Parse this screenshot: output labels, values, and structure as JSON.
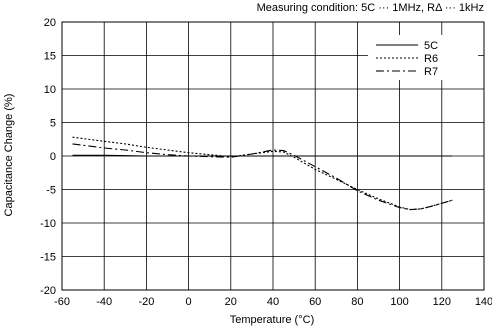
{
  "chart_data": {
    "type": "line",
    "condition_note": "Measuring condition: 5C ··· 1MHz, RΔ ··· 1kHz",
    "xlabel": "Temperature (°C)",
    "ylabel": "Capacitance Change (%)",
    "xlim": [
      -60,
      140
    ],
    "ylim": [
      -20,
      20
    ],
    "x_ticks": [
      -60,
      -40,
      -20,
      0,
      20,
      40,
      60,
      80,
      100,
      120,
      140
    ],
    "y_ticks": [
      20,
      15,
      10,
      5,
      0,
      -5,
      -10,
      -15,
      -20
    ],
    "grid": true,
    "legend_position": "top-right",
    "series": [
      {
        "name": "5C",
        "line_style": "solid",
        "x": [
          -55,
          -40,
          -20,
          0,
          20,
          40,
          60,
          80,
          100,
          125
        ],
        "y": [
          0.1,
          0.1,
          0.0,
          0.0,
          0.0,
          0.0,
          0.0,
          0.0,
          0.0,
          0.0
        ]
      },
      {
        "name": "R6",
        "line_style": "dotted",
        "x": [
          -55,
          -40,
          -30,
          -20,
          -10,
          0,
          10,
          20,
          30,
          40,
          45,
          50,
          60,
          70,
          80,
          90,
          100,
          105,
          110,
          115,
          125
        ],
        "y": [
          2.8,
          2.2,
          1.8,
          1.3,
          0.9,
          0.5,
          0.2,
          -0.1,
          0.3,
          0.7,
          0.6,
          -0.2,
          -2.0,
          -3.5,
          -5.0,
          -6.4,
          -7.6,
          -8.0,
          -7.9,
          -7.5,
          -6.6
        ]
      },
      {
        "name": "R7",
        "line_style": "dash-dot",
        "x": [
          -55,
          -40,
          -30,
          -20,
          -10,
          0,
          10,
          20,
          30,
          40,
          45,
          50,
          60,
          70,
          80,
          90,
          100,
          105,
          110,
          115,
          125
        ],
        "y": [
          1.8,
          1.2,
          0.9,
          0.5,
          0.2,
          0.0,
          -0.1,
          -0.2,
          0.3,
          0.9,
          0.8,
          0.1,
          -1.6,
          -3.3,
          -5.2,
          -6.6,
          -7.7,
          -8.0,
          -7.9,
          -7.5,
          -6.6
        ]
      }
    ]
  }
}
